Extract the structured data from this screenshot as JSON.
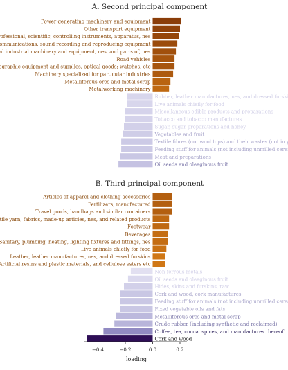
{
  "chart_data": [
    {
      "type": "bar",
      "orientation": "horizontal",
      "title": "A. Second principal component",
      "xlim": [
        -0.5,
        0.25
      ],
      "categories": [
        "Power generating machinery and equipment",
        "Other transport equipment",
        "Professional, scientific, controlling instruments, apparatus, nes",
        "Telecommunications, sound recording and reproducing equipment",
        "General industrial machinery and equipment, nes, and parts of, nes",
        "Road vehicles",
        "Photographic equipment and supplies, optical goods; watches, etc",
        "Machinery specialized for particular industries",
        "Metalliferous ores and metal scrap",
        "Metalworking machinery",
        "Rubber, leather manufactures, nes, and dressed furskins",
        "Live animals chiefly for food",
        "Miscellaneous edible products and preparations",
        "Tobacco and tobacco manufactures",
        "Sugar, sugar preparations and honey",
        "Vegetables and fruit",
        "Textile fibres (not wool tops) and their wastes (not in yarn)",
        "Feeding stuff for animals (not including unmilled cereals)",
        "Meat and preparations",
        "Oil seeds and oleaginous fruit"
      ],
      "values": [
        0.21,
        0.2,
        0.19,
        0.18,
        0.17,
        0.16,
        0.16,
        0.15,
        0.13,
        0.12,
        -0.19,
        -0.19,
        -0.2,
        -0.2,
        -0.21,
        -0.22,
        -0.23,
        -0.23,
        -0.24,
        -0.25
      ]
    },
    {
      "type": "bar",
      "orientation": "horizontal",
      "title": "B. Third principal component",
      "xlim": [
        -0.5,
        0.25
      ],
      "xlabel": "loading",
      "xticks": [
        "−0.4",
        "−0.2",
        "0.0",
        "0.2"
      ],
      "xtick_values": [
        -0.4,
        -0.2,
        0.0,
        0.2
      ],
      "categories": [
        "Articles of apparel and clothing accessories",
        "Fertilizers, manufactured",
        "Travel goods, handbags and similar containers",
        "Textile yarn, fabrics, made-up articles, nes, and related products",
        "Footwear",
        "Beverages",
        "Sanitary, plumbing, heating, lighting fixtures and fittings, nes",
        "Live animals chiefly for food",
        "Leather, leather manufactures, nes, and dressed furskins",
        "Artificial resins and plastic materials, and cellulose esters etc",
        "Non-ferrous metals",
        "Oil seeds and oleaginous fruit",
        "Hides, skins and furskins, raw",
        "Cork and wood, cork manufactures",
        "Feeding stuff for animals (not including unmilled cereals)",
        "Fixed vegetable oils and fats",
        "Metalliferous ores and metal scrap",
        "Crude rubber (including synthetic and reclaimed)",
        "Coffee, tea, cocoa, spices, and manufactures thereof",
        "Cork and wood"
      ],
      "values": [
        0.14,
        0.14,
        0.14,
        0.12,
        0.12,
        0.11,
        0.11,
        0.1,
        0.09,
        0.09,
        -0.16,
        -0.18,
        -0.21,
        -0.24,
        -0.24,
        -0.24,
        -0.27,
        -0.28,
        -0.36,
        -0.48
      ]
    }
  ]
}
